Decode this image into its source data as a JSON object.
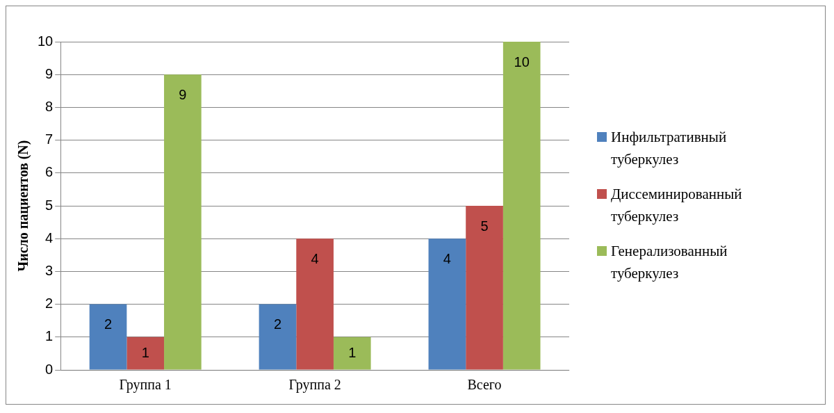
{
  "chart_data": {
    "type": "bar",
    "ylabel": "Число пациентов (N)",
    "categories": [
      "Группа 1",
      "Группа 2",
      "Всего"
    ],
    "series": [
      {
        "name": "Инфильтративный туберкулез",
        "color": "#4f81bd",
        "values": [
          2,
          2,
          4
        ]
      },
      {
        "name": "Диссеминированный туберкулез",
        "color": "#c0504d",
        "values": [
          1,
          4,
          5
        ]
      },
      {
        "name": "Генерализованный туберкулез",
        "color": "#9bbb59",
        "values": [
          9,
          1,
          10
        ]
      }
    ],
    "ylim": [
      0,
      10
    ],
    "yticks": [
      0,
      1,
      2,
      3,
      4,
      5,
      6,
      7,
      8,
      9,
      10
    ],
    "grid": "y",
    "legend": "right",
    "data_labels": true
  }
}
